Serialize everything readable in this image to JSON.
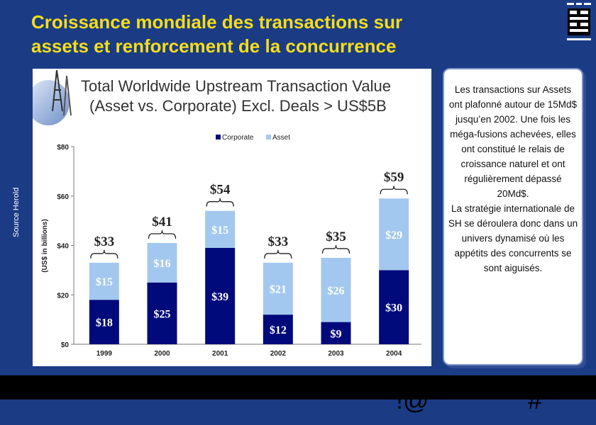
{
  "slide": {
    "title_line1": "Croissance mondiale des transactions  sur",
    "title_line2": "assets et renforcement de la concurrence",
    "source_label": "Source Herold",
    "textbox_p1": "Les transactions sur Assets ont plafonné autour de 15Md$ jusqu’en 2002. Une fois les méga-fusions achevées, elles ont constitué le relais de croissance naturel et ont régulièrement dépassé 20Md$.",
    "textbox_p2": "La stratégie internationale de SH se déroulera donc dans un univers dynamisé où les appétits des concurrents se sont aiguisés.",
    "footer_left": "!@",
    "footer_right": "#"
  },
  "chart_data": {
    "type": "bar",
    "stacked": true,
    "title_line1": "Total Worldwide Upstream Transaction Value",
    "title_line2": "(Asset vs. Corporate) Excl. Deals > US$5B",
    "ylabel": "(US$ in billions)",
    "ylim": [
      0,
      80
    ],
    "yticks": [
      0,
      20,
      40,
      60,
      80
    ],
    "ytick_labels": [
      "$0",
      "$20",
      "$40",
      "$60",
      "$80"
    ],
    "categories": [
      "1999",
      "2000",
      "2001",
      "2002",
      "2003",
      "2004"
    ],
    "series": [
      {
        "name": "Corporate",
        "color": "#000a7a",
        "values": [
          18,
          25,
          39,
          12,
          9,
          30
        ],
        "labels": [
          "$18",
          "$25",
          "$39",
          "$12",
          "$9",
          "$30"
        ]
      },
      {
        "name": "Asset",
        "color": "#a3c8ef",
        "values": [
          15,
          16,
          15,
          21,
          26,
          29
        ],
        "labels": [
          "$15",
          "$16",
          "$15",
          "$21",
          "$26",
          "$29"
        ]
      }
    ],
    "totals": [
      33,
      41,
      54,
      33,
      35,
      59
    ],
    "total_labels": [
      "$33",
      "$41",
      "$54",
      "$33",
      "$35",
      "$59"
    ],
    "legend_position": "top",
    "grid": false
  }
}
